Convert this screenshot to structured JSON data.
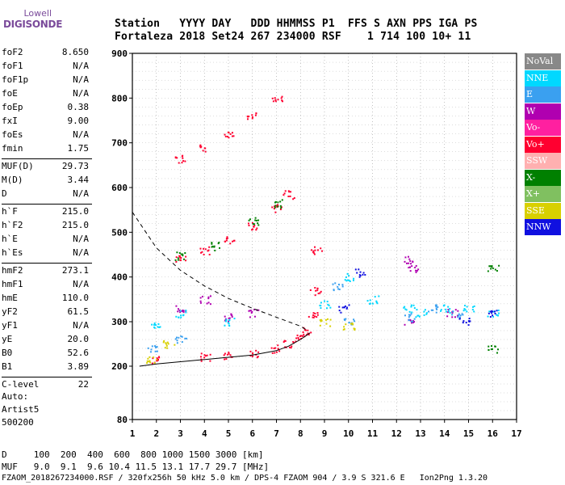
{
  "logo": {
    "line1": "Lowell",
    "line2": "DIGISONDE"
  },
  "header": {
    "row1": "Station   YYYY DAY   DDD HHMMSS P1  FFS S AXN PPS IGA PS",
    "row2": "Fortaleza 2018 Set24 267 234000 RSF    1 714 100 10+ 11"
  },
  "params": [
    {
      "k": "foF2",
      "v": "8.650"
    },
    {
      "k": "foF1",
      "v": "N/A"
    },
    {
      "k": "foF1p",
      "v": "N/A"
    },
    {
      "k": "foE",
      "v": "N/A"
    },
    {
      "k": "foEp",
      "v": "0.38"
    },
    {
      "k": "fxI",
      "v": "9.00"
    },
    {
      "k": "foEs",
      "v": "N/A"
    },
    {
      "k": "fmin",
      "v": "1.75"
    },
    {
      "k": "MUF(D)",
      "v": "29.73"
    },
    {
      "k": "M(D)",
      "v": "3.44"
    },
    {
      "k": "D",
      "v": "N/A"
    },
    {
      "k": "h`F",
      "v": "215.0"
    },
    {
      "k": "h`F2",
      "v": "215.0"
    },
    {
      "k": "h`E",
      "v": "N/A"
    },
    {
      "k": "h`Es",
      "v": "N/A"
    },
    {
      "k": "hmF2",
      "v": "273.1"
    },
    {
      "k": "hmF1",
      "v": "N/A"
    },
    {
      "k": "hmE",
      "v": "110.0"
    },
    {
      "k": "yF2",
      "v": "61.5"
    },
    {
      "k": "yF1",
      "v": "N/A"
    },
    {
      "k": "yE",
      "v": "20.0"
    },
    {
      "k": "B0",
      "v": "52.6"
    },
    {
      "k": "B1",
      "v": "3.89"
    },
    {
      "k": "C-level",
      "v": "22"
    }
  ],
  "auto": {
    "l1": "Auto:",
    "l2": "Artist5",
    "l3": "500200"
  },
  "bottom": {
    "d_line": "D     100  200  400  600  800 1000 1500 3000 [km]",
    "muf_line": "MUF   9.0  9.1  9.6 10.4 11.5 13.1 17.7 29.7 [MHz]",
    "file_line": "FZAOM_2018267234000.RSF / 320fx256h 50 kHz 5.0 km / DPS-4 FZAOM 904 / 3.9 S 321.6 E   Ion2Png 1.3.20"
  },
  "legend": [
    {
      "label": "NoVal",
      "color": "#888888"
    },
    {
      "label": "NNE",
      "color": "#00d8ff"
    },
    {
      "label": "E",
      "color": "#3aa0f0"
    },
    {
      "label": "W",
      "color": "#b000b0"
    },
    {
      "label": "Vo-",
      "color": "#ff20a0"
    },
    {
      "label": "Vo+",
      "color": "#ff0030"
    },
    {
      "label": "SSW",
      "color": "#ffb0b0"
    },
    {
      "label": "X-",
      "color": "#008000"
    },
    {
      "label": "X+",
      "color": "#80c060"
    },
    {
      "label": "SSE",
      "color": "#d8d000"
    },
    {
      "label": "NNW",
      "color": "#1010e0"
    }
  ],
  "chart_data": {
    "type": "scatter",
    "xlim": [
      1,
      17
    ],
    "ylim": [
      80,
      900
    ],
    "x_ticks": [
      "1",
      "2",
      "3",
      "4",
      "5",
      "6",
      "7",
      "8",
      "9",
      "10",
      "11",
      "12",
      "13",
      "14",
      "15",
      "16",
      "17"
    ],
    "y_ticks": [
      "80",
      "200",
      "300",
      "400",
      "500",
      "600",
      "700",
      "800",
      "900"
    ],
    "grid": true,
    "series": [
      {
        "name": "Vo+",
        "color": "#ff0030",
        "values": [
          [
            2,
            215
          ],
          [
            4,
            222
          ],
          [
            5,
            225
          ],
          [
            6,
            230
          ],
          [
            7,
            240
          ],
          [
            7.5,
            250
          ],
          [
            8,
            262
          ],
          [
            8.3,
            280
          ],
          [
            8.5,
            320
          ],
          [
            8.6,
            370
          ],
          [
            8.65,
            460
          ],
          [
            3,
            440
          ],
          [
            4,
            460
          ],
          [
            5,
            485
          ],
          [
            6,
            515
          ],
          [
            7,
            555
          ],
          [
            7.5,
            585
          ],
          [
            3,
            665
          ],
          [
            4,
            690
          ],
          [
            5,
            720
          ],
          [
            6,
            760
          ],
          [
            7,
            800
          ]
        ]
      },
      {
        "name": "X-",
        "color": "#008000",
        "values": [
          [
            3,
            448
          ],
          [
            4.5,
            470
          ],
          [
            6,
            525
          ],
          [
            7,
            565
          ],
          [
            16,
            420
          ],
          [
            16,
            240
          ]
        ]
      },
      {
        "name": "W",
        "color": "#b000b0",
        "values": [
          [
            3,
            330
          ],
          [
            4,
            350
          ],
          [
            5,
            310
          ],
          [
            6,
            320
          ],
          [
            12.5,
            440
          ],
          [
            12.7,
            420
          ],
          [
            12.5,
            300
          ],
          [
            14.3,
            320
          ]
        ]
      },
      {
        "name": "NNE",
        "color": "#00d8ff",
        "values": [
          [
            2,
            290
          ],
          [
            3,
            320
          ],
          [
            5,
            300
          ],
          [
            9,
            340
          ],
          [
            10,
            400
          ],
          [
            11,
            350
          ],
          [
            12.5,
            330
          ],
          [
            13,
            320
          ],
          [
            14,
            330
          ],
          [
            15,
            330
          ],
          [
            16,
            320
          ]
        ]
      },
      {
        "name": "E",
        "color": "#3aa0f0",
        "values": [
          [
            1.8,
            240
          ],
          [
            3,
            260
          ],
          [
            9.5,
            380
          ],
          [
            10,
            300
          ],
          [
            12.5,
            310
          ],
          [
            13.5,
            330
          ],
          [
            14.5,
            320
          ]
        ]
      },
      {
        "name": "SSE",
        "color": "#d8d000",
        "values": [
          [
            1.8,
            215
          ],
          [
            2.5,
            250
          ],
          [
            9,
            300
          ],
          [
            10,
            290
          ]
        ]
      },
      {
        "name": "NNW",
        "color": "#1010e0",
        "values": [
          [
            9.8,
            330
          ],
          [
            10.5,
            410
          ],
          [
            14.8,
            300
          ],
          [
            16,
            320
          ]
        ]
      }
    ],
    "curves": [
      {
        "style": "dashed",
        "points": [
          [
            1,
            545
          ],
          [
            2,
            465
          ],
          [
            3,
            415
          ],
          [
            4,
            380
          ],
          [
            5,
            352
          ],
          [
            6,
            330
          ],
          [
            7,
            310
          ],
          [
            8,
            290
          ],
          [
            8.3,
            280
          ]
        ]
      },
      {
        "style": "solid",
        "points": [
          [
            1.3,
            200
          ],
          [
            2,
            205
          ],
          [
            3,
            210
          ],
          [
            4,
            215
          ],
          [
            5,
            220
          ],
          [
            6,
            225
          ],
          [
            7,
            235
          ],
          [
            7.5,
            245
          ],
          [
            8,
            260
          ],
          [
            8.4,
            275
          ]
        ]
      }
    ]
  }
}
